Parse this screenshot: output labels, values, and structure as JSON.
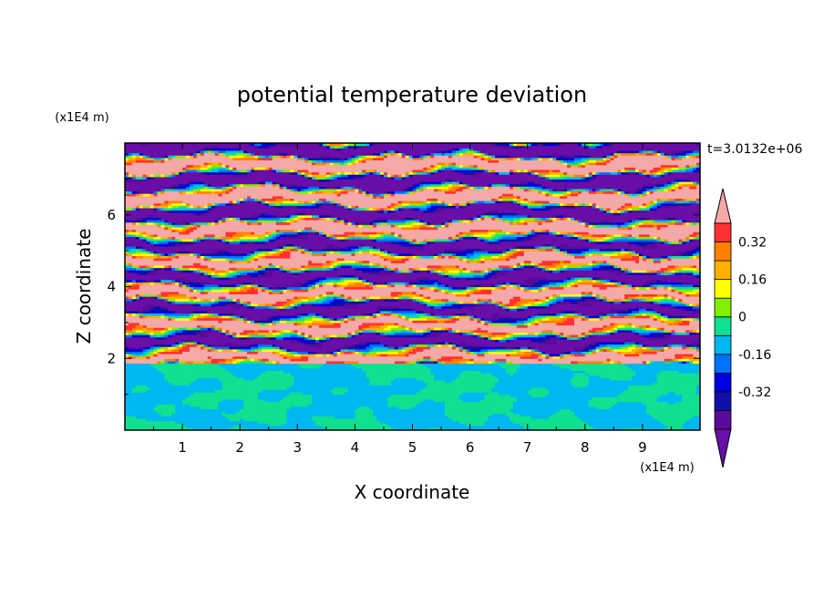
{
  "chart_data": {
    "type": "heatmap",
    "title": "potential temperature deviation",
    "xlabel": "X coordinate",
    "ylabel": "Z coordinate",
    "x_unit": "(x1E4 m)",
    "y_unit": "(x1E4 m)",
    "time_label": "t=3.0132e+06",
    "xlim": [
      0,
      10
    ],
    "ylim": [
      0,
      8
    ],
    "x_ticks": [
      "1",
      "2",
      "3",
      "4",
      "5",
      "6",
      "7",
      "8",
      "9"
    ],
    "y_ticks": [
      "2",
      "4",
      "6"
    ],
    "grid": false,
    "colorbar": {
      "position": "right",
      "levels": [
        -0.48,
        -0.4,
        -0.32,
        -0.24,
        -0.16,
        -0.08,
        0,
        0.08,
        0.16,
        0.24,
        0.32,
        0.4,
        0.48
      ],
      "tick_labels": [
        "0.32",
        "0.16",
        "0",
        "-0.16",
        "-0.32"
      ],
      "colors": [
        "#6a0ea8",
        "#5a0a9a",
        "#1010a8",
        "#0000e0",
        "#0070ff",
        "#00b8f0",
        "#10e090",
        "#80f000",
        "#ffff00",
        "#ffb000",
        "#ff8000",
        "#ff3030",
        "#f4a8a8"
      ],
      "extend": "both"
    },
    "layers": [
      {
        "z_range": [
          0,
          1.9
        ],
        "description_values": [
          -0.04,
          0.04
        ],
        "colors": [
          "#10e090",
          "#80f000"
        ]
      },
      {
        "z_range": [
          1.9,
          8
        ],
        "description_values": [
          -0.48,
          0.48
        ],
        "pattern": "alternating bands"
      }
    ]
  }
}
